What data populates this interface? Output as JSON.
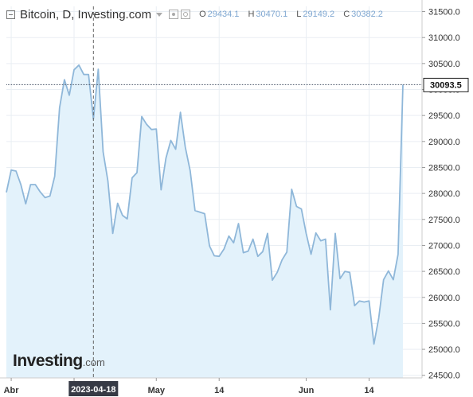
{
  "header": {
    "title": "Bitcoin, D, Investing.com",
    "ohlc": [
      {
        "key": "O",
        "value": "29434.1"
      },
      {
        "key": "H",
        "value": "30470.1"
      },
      {
        "key": "L",
        "value": "29149.2"
      },
      {
        "key": "C",
        "value": "30382.2"
      }
    ]
  },
  "logo": {
    "main": "Investing",
    "suffix": ".com"
  },
  "colors": {
    "line": "#8fb7d9",
    "fill": "#e3f2fb",
    "grid": "#e9eef3",
    "text": "#333333",
    "crosshair": "#666666"
  },
  "chart_data": {
    "type": "area",
    "title": "",
    "xlabel": "",
    "ylabel": "",
    "ylim": [
      24450,
      31600
    ],
    "yticks": [
      24500,
      25000,
      25500,
      26000,
      26500,
      27000,
      27500,
      28000,
      28500,
      29000,
      29500,
      30000,
      30500,
      31000,
      31500
    ],
    "ytick_labels": [
      "24500.0",
      "25000.0",
      "25500.0",
      "26000.0",
      "26500.0",
      "27000.0",
      "27500.0",
      "28000.0",
      "28500.0",
      "29000.0",
      "29500.0",
      "30000.0",
      "30500.0",
      "31000.0",
      "31500.0"
    ],
    "xtick_labels": [
      {
        "date": "2023-04-01",
        "label": "Abr"
      },
      {
        "date": "2023-04-14",
        "label": "14"
      },
      {
        "date": "2023-05-01",
        "label": "May"
      },
      {
        "date": "2023-05-14",
        "label": "14"
      },
      {
        "date": "2023-06-01",
        "label": "Jun"
      },
      {
        "date": "2023-06-14",
        "label": "14"
      }
    ],
    "crosshair": {
      "date": "2023-04-18",
      "label": "2023-04-18"
    },
    "last_price": {
      "value": 30093.5,
      "label": "30093.5"
    },
    "grid": true,
    "series": [
      {
        "x": [
          "2023-03-31",
          "2023-04-01",
          "2023-04-02",
          "2023-04-03",
          "2023-04-04",
          "2023-04-05",
          "2023-04-06",
          "2023-04-07",
          "2023-04-08",
          "2023-04-09",
          "2023-04-10",
          "2023-04-11",
          "2023-04-12",
          "2023-04-13",
          "2023-04-14",
          "2023-04-15",
          "2023-04-16",
          "2023-04-17",
          "2023-04-18",
          "2023-04-19",
          "2023-04-20",
          "2023-04-21",
          "2023-04-22",
          "2023-04-23",
          "2023-04-24",
          "2023-04-25",
          "2023-04-26",
          "2023-04-27",
          "2023-04-28",
          "2023-04-29",
          "2023-04-30",
          "2023-05-01",
          "2023-05-02",
          "2023-05-03",
          "2023-05-04",
          "2023-05-05",
          "2023-05-06",
          "2023-05-07",
          "2023-05-08",
          "2023-05-09",
          "2023-05-10",
          "2023-05-11",
          "2023-05-12",
          "2023-05-13",
          "2023-05-14",
          "2023-05-15",
          "2023-05-16",
          "2023-05-17",
          "2023-05-18",
          "2023-05-19",
          "2023-05-20",
          "2023-05-21",
          "2023-05-22",
          "2023-05-23",
          "2023-05-24",
          "2023-05-25",
          "2023-05-26",
          "2023-05-27",
          "2023-05-28",
          "2023-05-29",
          "2023-05-30",
          "2023-05-31",
          "2023-06-01",
          "2023-06-02",
          "2023-06-03",
          "2023-06-04",
          "2023-06-05",
          "2023-06-06",
          "2023-06-07",
          "2023-06-08",
          "2023-06-09",
          "2023-06-10",
          "2023-06-11",
          "2023-06-12",
          "2023-06-13",
          "2023-06-14",
          "2023-06-15",
          "2023-06-16",
          "2023-06-17",
          "2023-06-18",
          "2023-06-19",
          "2023-06-20",
          "2023-06-21"
        ],
        "y": [
          28020,
          28450,
          28430,
          28170,
          27800,
          28170,
          28170,
          28030,
          27920,
          27950,
          28330,
          29650,
          30190,
          29890,
          30380,
          30470,
          30290,
          30290,
          29430,
          30390,
          28800,
          28240,
          27230,
          27810,
          27580,
          27510,
          28300,
          28400,
          29480,
          29330,
          29230,
          29240,
          28070,
          28680,
          29020,
          28850,
          29560,
          28890,
          28440,
          27670,
          27640,
          27610,
          26990,
          26800,
          26790,
          26930,
          27180,
          27050,
          27420,
          26860,
          26890,
          27120,
          26790,
          26880,
          27230,
          26330,
          26480,
          26720,
          26870,
          28080,
          27750,
          27700,
          27230,
          26830,
          27240,
          27090,
          27120,
          25760,
          27230,
          26360,
          26500,
          26480,
          25840,
          25930,
          25910,
          25930,
          25100,
          25600,
          26340,
          26510,
          26340,
          26830,
          30093.5
        ]
      }
    ]
  }
}
